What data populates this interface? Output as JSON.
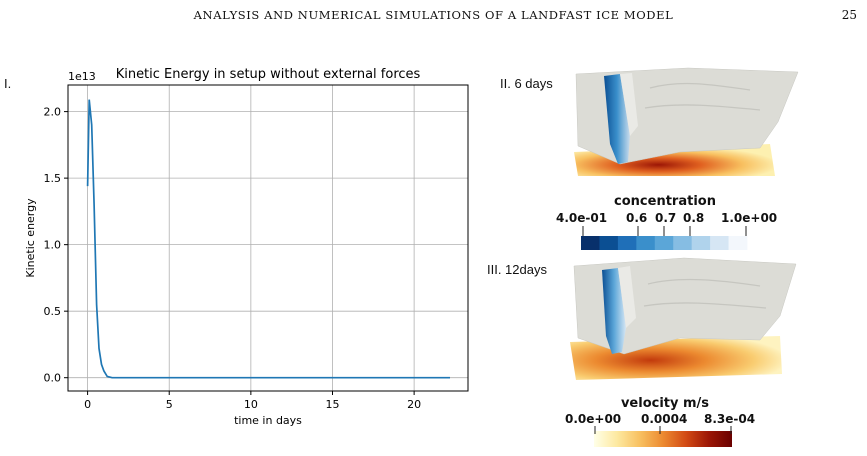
{
  "page": {
    "running_head": "ANALYSIS AND NUMERICAL SIMULATIONS OF A LANDFAST ICE MODEL",
    "page_number": "25"
  },
  "panels": {
    "label_1": "I.",
    "label_2": "II. 6 days",
    "label_3": "III. 12days"
  },
  "chart_data": {
    "type": "line",
    "title": "Kinetic Energy in setup without external forces",
    "xlabel": "time in days",
    "ylabel": "Kinetic energy",
    "y_offset_label": "1e13",
    "xlim": [
      -1.2,
      23.3
    ],
    "ylim": [
      -0.1,
      2.2
    ],
    "xticks": [
      0,
      5,
      10,
      15,
      20
    ],
    "xtick_labels": [
      "0",
      "5",
      "10",
      "15",
      "20"
    ],
    "yticks": [
      0.0,
      0.5,
      1.0,
      1.5,
      2.0
    ],
    "ytick_labels": [
      "0.0",
      "0.5",
      "1.0",
      "1.5",
      "2.0"
    ],
    "grid": true,
    "color": "#1f77b4",
    "x": [
      0,
      0.1,
      0.25,
      0.4,
      0.55,
      0.7,
      0.85,
      1.0,
      1.2,
      1.5,
      2,
      5,
      10,
      15,
      20,
      22.2
    ],
    "y": [
      1.44,
      2.09,
      1.9,
      1.3,
      0.55,
      0.22,
      0.1,
      0.05,
      0.01,
      0.0,
      0.0,
      0.0,
      0.0,
      0.0,
      0.0,
      0.0
    ]
  },
  "colorbars": {
    "concentration": {
      "title": "concentration",
      "ticks": [
        "4.0e-01",
        "0.6",
        "0.7",
        "0.8",
        "1.0e+00"
      ],
      "colors": [
        "#08306b",
        "#0b4f93",
        "#1f6fb8",
        "#3a8fcb",
        "#5ba6d8",
        "#86bde3",
        "#b0d3ec",
        "#d6e6f4",
        "#f3f7fc"
      ]
    },
    "velocity": {
      "title": "velocity m/s",
      "ticks": [
        "0.0e+00",
        "0.0004",
        "8.3e-04"
      ],
      "gradient": [
        "#ffffe8",
        "#fde9a0",
        "#f8c060",
        "#ec8a30",
        "#d24a14",
        "#9c1606",
        "#6a0000"
      ]
    }
  }
}
